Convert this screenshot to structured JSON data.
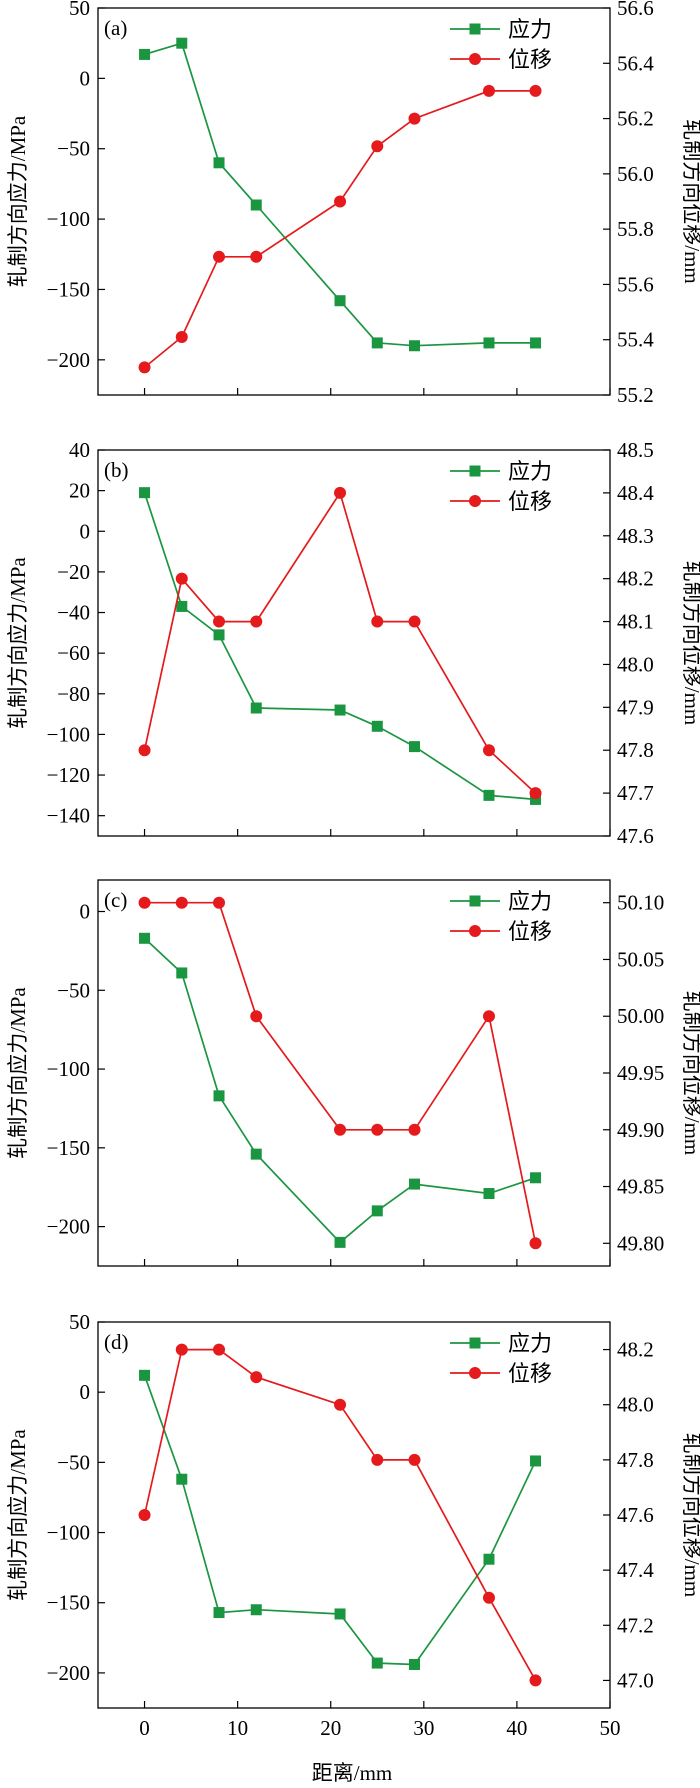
{
  "figure": {
    "xlabel": "距离/mm",
    "x_ticks": [
      0,
      10,
      20,
      30,
      40,
      50
    ],
    "xlim": [
      -5,
      50
    ]
  },
  "legend": {
    "stress_label": "应力",
    "displacement_label": "位移"
  },
  "colors": {
    "stress": "#1a9641",
    "displacement": "#e41a1c"
  },
  "chart_data": [
    {
      "type": "line",
      "panel_label": "(a)",
      "ylabel_left": "轧制方向应力/MPa",
      "ylabel_right": "轧制方向位移/mm",
      "ylim_left": [
        -225,
        50
      ],
      "ylim_right": [
        55.2,
        56.6
      ],
      "y_ticks_left": [
        50,
        0,
        -50,
        -100,
        -150,
        -200
      ],
      "y_ticks_right": [
        "56.6",
        "56.4",
        "56.2",
        "56.0",
        "55.8",
        "55.6",
        "55.4",
        "55.2"
      ],
      "series": [
        {
          "name": "应力",
          "axis": "left",
          "marker": "square",
          "x": [
            0,
            4,
            8,
            12,
            21,
            25,
            29,
            37,
            42
          ],
          "values": [
            17,
            25,
            -60,
            -90,
            -158,
            -188,
            -190,
            -188,
            -188
          ]
        },
        {
          "name": "位移",
          "axis": "right",
          "marker": "circle",
          "x": [
            0,
            4,
            8,
            12,
            21,
            25,
            29,
            37,
            42
          ],
          "values": [
            55.3,
            55.41,
            55.7,
            55.7,
            55.9,
            56.1,
            56.2,
            56.3,
            56.3
          ]
        }
      ]
    },
    {
      "type": "line",
      "panel_label": "(b)",
      "ylabel_left": "轧制方向应力/MPa",
      "ylabel_right": "轧制方向位移/mm",
      "ylim_left": [
        -150,
        40
      ],
      "ylim_right": [
        47.6,
        48.5
      ],
      "y_ticks_left": [
        40,
        20,
        0,
        -20,
        -40,
        -60,
        -80,
        -100,
        -120,
        -140
      ],
      "y_ticks_right": [
        "48.5",
        "48.4",
        "48.3",
        "48.2",
        "48.1",
        "48.0",
        "47.9",
        "47.8",
        "47.7",
        "47.6"
      ],
      "series": [
        {
          "name": "应力",
          "axis": "left",
          "marker": "square",
          "x": [
            0,
            4,
            8,
            12,
            21,
            25,
            29,
            37,
            42
          ],
          "values": [
            19,
            -37,
            -51,
            -87,
            -88,
            -96,
            -106,
            -130,
            -132
          ]
        },
        {
          "name": "位移",
          "axis": "right",
          "marker": "circle",
          "x": [
            0,
            4,
            8,
            12,
            21,
            25,
            29,
            37,
            42
          ],
          "values": [
            47.8,
            48.2,
            48.1,
            48.1,
            48.4,
            48.1,
            48.1,
            47.8,
            47.7
          ]
        }
      ]
    },
    {
      "type": "line",
      "panel_label": "(c)",
      "ylabel_left": "轧制方向应力/MPa",
      "ylabel_right": "轧制方向位移/mm",
      "ylim_left": [
        -225,
        20
      ],
      "ylim_right": [
        49.78,
        50.12
      ],
      "y_ticks_left": [
        0,
        -50,
        -100,
        -150,
        -200
      ],
      "y_ticks_right": [
        "50.10",
        "50.05",
        "50.00",
        "49.95",
        "49.90",
        "49.85",
        "49.80"
      ],
      "series": [
        {
          "name": "应力",
          "axis": "left",
          "marker": "square",
          "x": [
            0,
            4,
            8,
            12,
            21,
            25,
            29,
            37,
            42
          ],
          "values": [
            -17,
            -39,
            -117,
            -154,
            -210,
            -190,
            -173,
            -179,
            -169
          ]
        },
        {
          "name": "位移",
          "axis": "right",
          "marker": "circle",
          "x": [
            0,
            4,
            8,
            12,
            21,
            25,
            29,
            37,
            42
          ],
          "values": [
            50.1,
            50.1,
            50.1,
            50.0,
            49.9,
            49.9,
            49.9,
            50.0,
            49.8
          ]
        }
      ]
    },
    {
      "type": "line",
      "panel_label": "(d)",
      "ylabel_left": "轧制方向应力/MPa",
      "ylabel_right": "轧制方向位移/mm",
      "ylim_left": [
        -225,
        50
      ],
      "ylim_right": [
        46.9,
        48.3
      ],
      "y_ticks_left": [
        50,
        0,
        -50,
        -100,
        -150,
        -200
      ],
      "y_ticks_right": [
        "48.2",
        "48.0",
        "47.8",
        "47.6",
        "47.4",
        "47.2",
        "47.0"
      ],
      "series": [
        {
          "name": "应力",
          "axis": "left",
          "marker": "square",
          "x": [
            0,
            4,
            8,
            12,
            21,
            25,
            29,
            37,
            42
          ],
          "values": [
            12,
            -62,
            -157,
            -155,
            -158,
            -193,
            -194,
            -119,
            -49
          ]
        },
        {
          "name": "位移",
          "axis": "right",
          "marker": "circle",
          "x": [
            0,
            4,
            8,
            12,
            21,
            25,
            29,
            37,
            42
          ],
          "values": [
            47.6,
            48.2,
            48.2,
            48.1,
            48.0,
            47.8,
            47.8,
            47.3,
            47.0
          ]
        }
      ]
    }
  ]
}
